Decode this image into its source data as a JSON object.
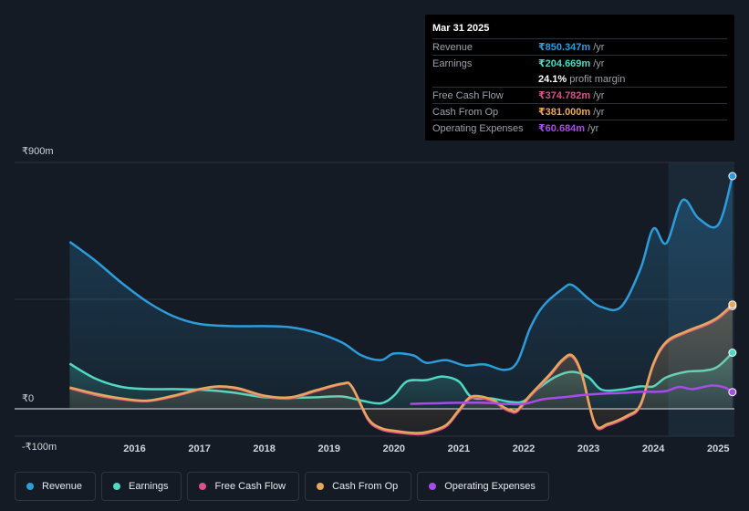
{
  "tooltip": {
    "date": "Mar 31 2025",
    "rows": [
      {
        "label": "Revenue",
        "value": "₹850.347m",
        "unit": "/yr",
        "color": "#2d9cdb"
      },
      {
        "label": "Earnings",
        "value": "₹204.669m",
        "unit": "/yr",
        "color": "#4fd8c4"
      },
      {
        "label": "",
        "value": "24.1%",
        "unit": "profit margin",
        "color": "#ffffff"
      },
      {
        "label": "Free Cash Flow",
        "value": "₹374.782m",
        "unit": "/yr",
        "color": "#d9518a"
      },
      {
        "label": "Cash From Op",
        "value": "₹381.000m",
        "unit": "/yr",
        "color": "#e8a85c"
      },
      {
        "label": "Operating Expenses",
        "value": "₹60.684m",
        "unit": "/yr",
        "color": "#a64de8"
      }
    ]
  },
  "legend": [
    {
      "label": "Revenue",
      "color": "#2d9cdb"
    },
    {
      "label": "Earnings",
      "color": "#4fd8c4"
    },
    {
      "label": "Free Cash Flow",
      "color": "#d9518a"
    },
    {
      "label": "Cash From Op",
      "color": "#e8a85c"
    },
    {
      "label": "Operating Expenses",
      "color": "#a64de8"
    }
  ],
  "chart_data": {
    "type": "area",
    "title": "",
    "xlabel": "",
    "ylabel": "",
    "ylim": [
      -100,
      900
    ],
    "y_ticks": [
      {
        "value": 900,
        "label": "₹900m"
      },
      {
        "value": 0,
        "label": "₹0"
      },
      {
        "value": -100,
        "label": "-₹100m"
      }
    ],
    "x_ticks": [
      {
        "value": 2016,
        "label": "2016"
      },
      {
        "value": 2017,
        "label": "2017"
      },
      {
        "value": 2018,
        "label": "2018"
      },
      {
        "value": 2019,
        "label": "2019"
      },
      {
        "value": 2020,
        "label": "2020"
      },
      {
        "value": 2021,
        "label": "2021"
      },
      {
        "value": 2022,
        "label": "2022"
      },
      {
        "value": 2023,
        "label": "2023"
      },
      {
        "value": 2024,
        "label": "2024"
      },
      {
        "value": 2025,
        "label": "2025"
      }
    ],
    "xlim": [
      2014.6,
      2025.25
    ],
    "forecast_start": 2024.23,
    "series": [
      {
        "name": "Revenue",
        "color": "#2d9cdb",
        "fill": true,
        "x": [
          2015.0,
          2015.4,
          2015.8,
          2016.2,
          2016.6,
          2017.0,
          2017.5,
          2018.0,
          2018.4,
          2018.8,
          2019.2,
          2019.5,
          2019.8,
          2020.0,
          2020.3,
          2020.5,
          2020.8,
          2021.1,
          2021.4,
          2021.7,
          2021.9,
          2022.1,
          2022.3,
          2022.6,
          2022.75,
          2023.0,
          2023.2,
          2023.5,
          2023.8,
          2024.0,
          2024.2,
          2024.45,
          2024.7,
          2025.0,
          2025.22
        ],
        "y": [
          610,
          540,
          460,
          390,
          338,
          310,
          302,
          302,
          298,
          278,
          242,
          195,
          178,
          202,
          195,
          168,
          178,
          158,
          162,
          142,
          170,
          295,
          375,
          438,
          452,
          402,
          372,
          372,
          510,
          658,
          605,
          762,
          695,
          672,
          850
        ]
      },
      {
        "name": "Earnings",
        "color": "#4fd8c4",
        "fill": true,
        "x": [
          2015.0,
          2015.4,
          2015.8,
          2016.2,
          2016.6,
          2017.0,
          2017.5,
          2018.0,
          2018.4,
          2018.8,
          2019.2,
          2019.5,
          2019.8,
          2020.0,
          2020.2,
          2020.5,
          2020.75,
          2021.0,
          2021.2,
          2021.5,
          2021.8,
          2022.0,
          2022.2,
          2022.5,
          2022.75,
          2023.0,
          2023.2,
          2023.5,
          2023.8,
          2024.0,
          2024.2,
          2024.5,
          2024.8,
          2025.0,
          2025.22
        ],
        "y": [
          165,
          110,
          80,
          72,
          72,
          70,
          60,
          42,
          40,
          42,
          45,
          30,
          20,
          48,
          100,
          105,
          118,
          100,
          42,
          38,
          25,
          28,
          70,
          118,
          135,
          115,
          70,
          70,
          82,
          82,
          115,
          135,
          140,
          155,
          205
        ]
      },
      {
        "name": "Free Cash Flow",
        "color": "#d9518a",
        "fill": false,
        "x": [
          2015.0,
          2015.4,
          2015.8,
          2016.2,
          2016.6,
          2017.0,
          2017.3,
          2017.6,
          2018.0,
          2018.4,
          2018.8,
          2019.2,
          2019.35,
          2019.6,
          2019.8,
          2020.0,
          2020.3,
          2020.5,
          2020.8,
          2021.0,
          2021.2,
          2021.5,
          2021.7,
          2021.8,
          2021.9,
          2022.1,
          2022.4,
          2022.6,
          2022.75,
          2022.9,
          2023.1,
          2023.3,
          2023.6,
          2023.8,
          2024.0,
          2024.2,
          2024.5,
          2024.8,
          2025.0,
          2025.22
        ],
        "y": [
          75,
          50,
          35,
          28,
          45,
          70,
          80,
          72,
          45,
          38,
          65,
          90,
          80,
          -40,
          -75,
          -85,
          -92,
          -90,
          -65,
          -10,
          40,
          30,
          0,
          -10,
          -10,
          45,
          120,
          175,
          190,
          120,
          -60,
          -60,
          -30,
          10,
          160,
          240,
          278,
          305,
          330,
          375
        ]
      },
      {
        "name": "Cash From Op",
        "color": "#e8a85c",
        "fill": true,
        "x": [
          2015.0,
          2015.4,
          2015.8,
          2016.2,
          2016.6,
          2017.0,
          2017.3,
          2017.6,
          2018.0,
          2018.4,
          2018.8,
          2019.2,
          2019.35,
          2019.6,
          2019.8,
          2020.0,
          2020.3,
          2020.5,
          2020.8,
          2021.0,
          2021.2,
          2021.5,
          2021.7,
          2021.8,
          2021.9,
          2022.1,
          2022.4,
          2022.6,
          2022.75,
          2022.9,
          2023.1,
          2023.3,
          2023.6,
          2023.8,
          2024.0,
          2024.2,
          2024.5,
          2024.8,
          2025.0,
          2025.22
        ],
        "y": [
          78,
          55,
          38,
          30,
          48,
          72,
          82,
          75,
          48,
          42,
          68,
          92,
          82,
          -35,
          -70,
          -80,
          -88,
          -85,
          -60,
          -5,
          45,
          35,
          5,
          -5,
          -5,
          50,
          125,
          180,
          195,
          125,
          -55,
          -55,
          -25,
          15,
          165,
          245,
          282,
          310,
          335,
          381
        ]
      },
      {
        "name": "Operating Expenses",
        "color": "#a64de8",
        "fill": false,
        "x": [
          2020.25,
          2020.6,
          2021.0,
          2021.4,
          2021.7,
          2022.0,
          2022.3,
          2022.6,
          2022.9,
          2023.2,
          2023.5,
          2023.8,
          2024.0,
          2024.2,
          2024.4,
          2024.6,
          2024.9,
          2025.1,
          2025.22
        ],
        "y": [
          18,
          20,
          22,
          22,
          18,
          18,
          35,
          42,
          50,
          55,
          58,
          62,
          62,
          65,
          80,
          72,
          85,
          78,
          61
        ]
      }
    ]
  }
}
